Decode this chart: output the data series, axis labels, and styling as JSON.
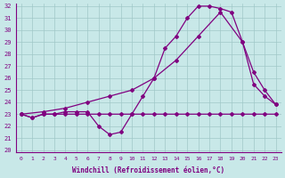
{
  "xlabel": "Windchill (Refroidissement éolien,°C)",
  "bg_color": "#c8e8e8",
  "line_color": "#800080",
  "grid_color": "#a0c8c8",
  "xlim": [
    -0.5,
    23.5
  ],
  "ylim": [
    19.8,
    32.2
  ],
  "yticks": [
    20,
    21,
    22,
    23,
    24,
    25,
    26,
    27,
    28,
    29,
    30,
    31,
    32
  ],
  "xticks": [
    0,
    1,
    2,
    3,
    4,
    5,
    6,
    7,
    8,
    9,
    10,
    11,
    12,
    13,
    14,
    15,
    16,
    17,
    18,
    19,
    20,
    21,
    22,
    23
  ],
  "line1_x": [
    0,
    1,
    2,
    3,
    4,
    5,
    6,
    7,
    8,
    9,
    10,
    11,
    12,
    13,
    14,
    15,
    16,
    17,
    18,
    19,
    20,
    21,
    22,
    23
  ],
  "line1_y": [
    23.0,
    22.7,
    23.0,
    23.0,
    23.0,
    23.0,
    23.0,
    23.0,
    23.0,
    23.0,
    23.0,
    23.0,
    23.0,
    23.0,
    23.0,
    23.0,
    23.0,
    23.0,
    23.0,
    23.0,
    23.0,
    23.0,
    23.0,
    23.0
  ],
  "line2_x": [
    0,
    2,
    4,
    6,
    8,
    10,
    12,
    14,
    16,
    18,
    20,
    21,
    22,
    23
  ],
  "line2_y": [
    23.0,
    23.2,
    23.5,
    24.0,
    24.5,
    25.0,
    26.0,
    27.5,
    29.5,
    31.5,
    29.0,
    26.5,
    25.0,
    23.8
  ],
  "line3_x": [
    0,
    1,
    2,
    3,
    4,
    5,
    6,
    7,
    8,
    9,
    10,
    11,
    12,
    13,
    14,
    15,
    16,
    17,
    18,
    19,
    20,
    21,
    22,
    23
  ],
  "line3_y": [
    23.0,
    22.7,
    23.0,
    23.0,
    23.2,
    23.2,
    23.2,
    22.0,
    21.3,
    21.5,
    23.0,
    24.5,
    26.0,
    28.5,
    29.5,
    31.0,
    32.0,
    32.0,
    31.8,
    31.5,
    29.0,
    25.5,
    24.5,
    23.8
  ]
}
